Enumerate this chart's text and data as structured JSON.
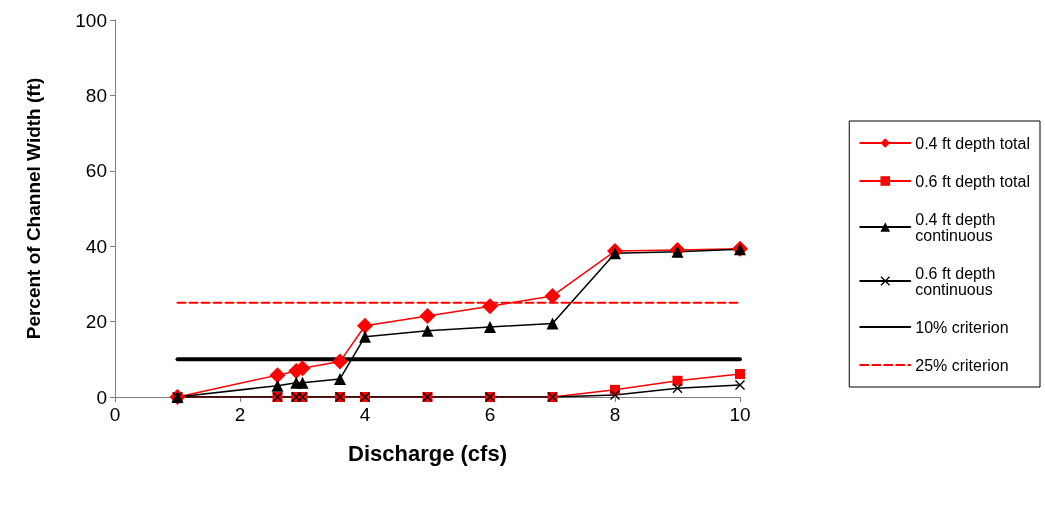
{
  "chart_data": {
    "type": "line",
    "xlabel": "Discharge (cfs)",
    "ylabel": "Percent of Channel Width (ft)",
    "xlim": [
      0,
      10
    ],
    "xticks": [
      0,
      2,
      4,
      6,
      8,
      10
    ],
    "ylim": [
      0,
      100
    ],
    "yticks": [
      0,
      20,
      40,
      60,
      80,
      100
    ],
    "grid": false,
    "legend": "right",
    "series": [
      {
        "name": "0.4 ft depth total",
        "color": "#ff0000",
        "marker": "diamond",
        "line_style": "solid",
        "x": [
          1,
          2.6,
          2.9,
          3,
          3.6,
          4,
          5,
          6,
          7,
          8,
          9,
          10
        ],
        "values": [
          0,
          5.8,
          6.9,
          7.6,
          9.4,
          18.9,
          21.5,
          24.1,
          26.8,
          38.7,
          39,
          39.3
        ]
      },
      {
        "name": "0.6 ft depth total",
        "color": "#ff0000",
        "marker": "square",
        "line_style": "solid",
        "x": [
          1,
          2.6,
          2.9,
          3,
          3.6,
          4,
          5,
          6,
          7,
          8,
          9,
          10
        ],
        "values": [
          0,
          0,
          0,
          0,
          0,
          0,
          0,
          0,
          0,
          1.9,
          4.3,
          6.1
        ]
      },
      {
        "name": "0.4 ft depth continuous",
        "color": "#000000",
        "marker": "triangle",
        "line_style": "solid",
        "x": [
          1,
          2.6,
          2.9,
          3,
          3.6,
          4,
          5,
          6,
          7,
          8,
          9,
          10
        ],
        "values": [
          0,
          3,
          3.8,
          3.8,
          4.8,
          16,
          17.6,
          18.6,
          19.5,
          38.1,
          38.5,
          39.2
        ]
      },
      {
        "name": "0.6 ft depth continuous",
        "color": "#000000",
        "marker": "cross",
        "line_style": "solid",
        "x": [
          1,
          2.6,
          2.9,
          3,
          3.6,
          4,
          5,
          6,
          7,
          8,
          9,
          10
        ],
        "values": [
          0,
          0,
          0,
          0,
          0,
          0,
          0,
          0,
          0,
          0.5,
          2.3,
          3.2
        ]
      },
      {
        "name": "10% criterion",
        "color": "#000000",
        "marker": "none",
        "line_style": "solid",
        "x": [
          1,
          10
        ],
        "values": [
          10,
          10
        ]
      },
      {
        "name": "25% criterion",
        "color": "#ff0000",
        "marker": "none",
        "line_style": "dashed",
        "x": [
          1,
          10
        ],
        "values": [
          25,
          25
        ]
      }
    ]
  }
}
